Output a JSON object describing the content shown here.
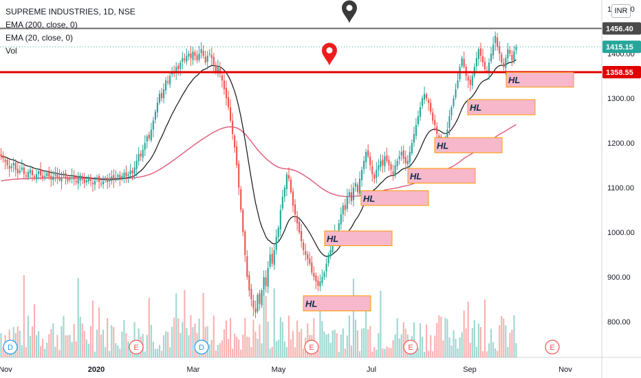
{
  "legend": {
    "title": "SUPREME INDUSTRIES, 1D, NSE",
    "ema200": "EMA (200, close, 0)",
    "ema20": "EMA (20, close, 0)",
    "vol": "Vol"
  },
  "currency": "INR",
  "chart_data": {
    "type": "candlestick",
    "y_ticks": [
      "1500.00",
      "1400.00",
      "1300.00",
      "1200.00",
      "1100.00",
      "1000.00",
      "900.00",
      "800.00"
    ],
    "y_tick_values": [
      1500,
      1400,
      1300,
      1200,
      1100,
      1000,
      900,
      800
    ],
    "ylim": [
      720,
      1520
    ],
    "x_ticks": [
      "Nov",
      "2020",
      "Mar",
      "May",
      "Jul",
      "Sep",
      "Nov"
    ],
    "price_labels": [
      {
        "text": "1456.40",
        "value": 1456.4,
        "color": "#4a4a4a"
      },
      {
        "text": "1415.15",
        "value": 1415.15,
        "color": "#26a69a"
      },
      {
        "text": "1358.55",
        "value": 1358.55,
        "color": "#e00000"
      }
    ],
    "horizontal_lines": [
      {
        "value": 1456.4,
        "color": "#6b6b6b"
      },
      {
        "value": 1358.55,
        "color": "#e00000"
      }
    ],
    "markers": [
      {
        "type": "pin",
        "color": "#3a3a3a",
        "value": 1490
      },
      {
        "type": "pin",
        "color": "#ee1c1c",
        "value": 1395
      }
    ],
    "hl_boxes": [
      {
        "label": "HL",
        "low": 824,
        "high": 858
      },
      {
        "label": "HL",
        "low": 970,
        "high": 1003
      },
      {
        "label": "HL",
        "low": 1060,
        "high": 1093
      },
      {
        "label": "HL",
        "low": 1110,
        "high": 1143
      },
      {
        "label": "HL",
        "low": 1178,
        "high": 1212
      },
      {
        "label": "HL",
        "low": 1263,
        "high": 1297
      },
      {
        "label": "HL",
        "low": 1325,
        "high": 1358
      }
    ],
    "event_markers": [
      "D",
      "E",
      "D",
      "E",
      "E",
      "E"
    ],
    "closes": [
      1170,
      1165,
      1158,
      1150,
      1142,
      1148,
      1155,
      1140,
      1132,
      1138,
      1145,
      1130,
      1125,
      1135,
      1140,
      1128,
      1122,
      1130,
      1137,
      1127,
      1120,
      1126,
      1133,
      1124,
      1118,
      1125,
      1130,
      1122,
      1117,
      1123,
      1130,
      1120,
      1115,
      1122,
      1128,
      1118,
      1112,
      1120,
      1127,
      1118,
      1110,
      1117,
      1124,
      1115,
      1108,
      1115,
      1122,
      1113,
      1107,
      1114,
      1120,
      1112,
      1118,
      1125,
      1117,
      1122,
      1128,
      1120,
      1126,
      1133,
      1125,
      1130,
      1138,
      1132,
      1145,
      1160,
      1175,
      1170,
      1185,
      1200,
      1215,
      1210,
      1230,
      1250,
      1270,
      1290,
      1310,
      1300,
      1320,
      1340,
      1335,
      1350,
      1360,
      1355,
      1370,
      1365,
      1380,
      1390,
      1385,
      1395,
      1400,
      1390,
      1405,
      1395,
      1385,
      1400,
      1410,
      1395,
      1380,
      1395,
      1400,
      1390,
      1375,
      1360,
      1370,
      1355,
      1340,
      1320,
      1300,
      1280,
      1250,
      1220,
      1190,
      1150,
      1100,
      1050,
      1000,
      950,
      900,
      870,
      850,
      830,
      820,
      860,
      840,
      870,
      900,
      880,
      920,
      950,
      930,
      960,
      990,
      1010,
      1050,
      1080,
      1100,
      1130,
      1120,
      1090,
      1060,
      1040,
      1020,
      1000,
      980,
      960,
      950,
      940,
      930,
      910,
      900,
      890,
      880,
      890,
      900,
      910,
      930,
      950,
      960,
      980,
      1000,
      990,
      1020,
      1040,
      1060,
      1050,
      1080,
      1090,
      1070,
      1100,
      1110,
      1090,
      1120,
      1140,
      1160,
      1180,
      1170,
      1150,
      1130,
      1120,
      1140,
      1150,
      1160,
      1150,
      1170,
      1160,
      1150,
      1140,
      1130,
      1150,
      1160,
      1170,
      1180,
      1165,
      1155,
      1160,
      1180,
      1200,
      1220,
      1240,
      1260,
      1280,
      1300,
      1310,
      1300,
      1290,
      1270,
      1250,
      1240,
      1220,
      1210,
      1200,
      1190,
      1210,
      1230,
      1260,
      1280,
      1300,
      1320,
      1340,
      1370,
      1390,
      1370,
      1350,
      1340,
      1330,
      1350,
      1370,
      1390,
      1410,
      1395,
      1380,
      1365,
      1360,
      1380,
      1400,
      1420,
      1440,
      1415,
      1400,
      1380,
      1370,
      1390,
      1410,
      1400,
      1385,
      1405,
      1415
    ]
  }
}
